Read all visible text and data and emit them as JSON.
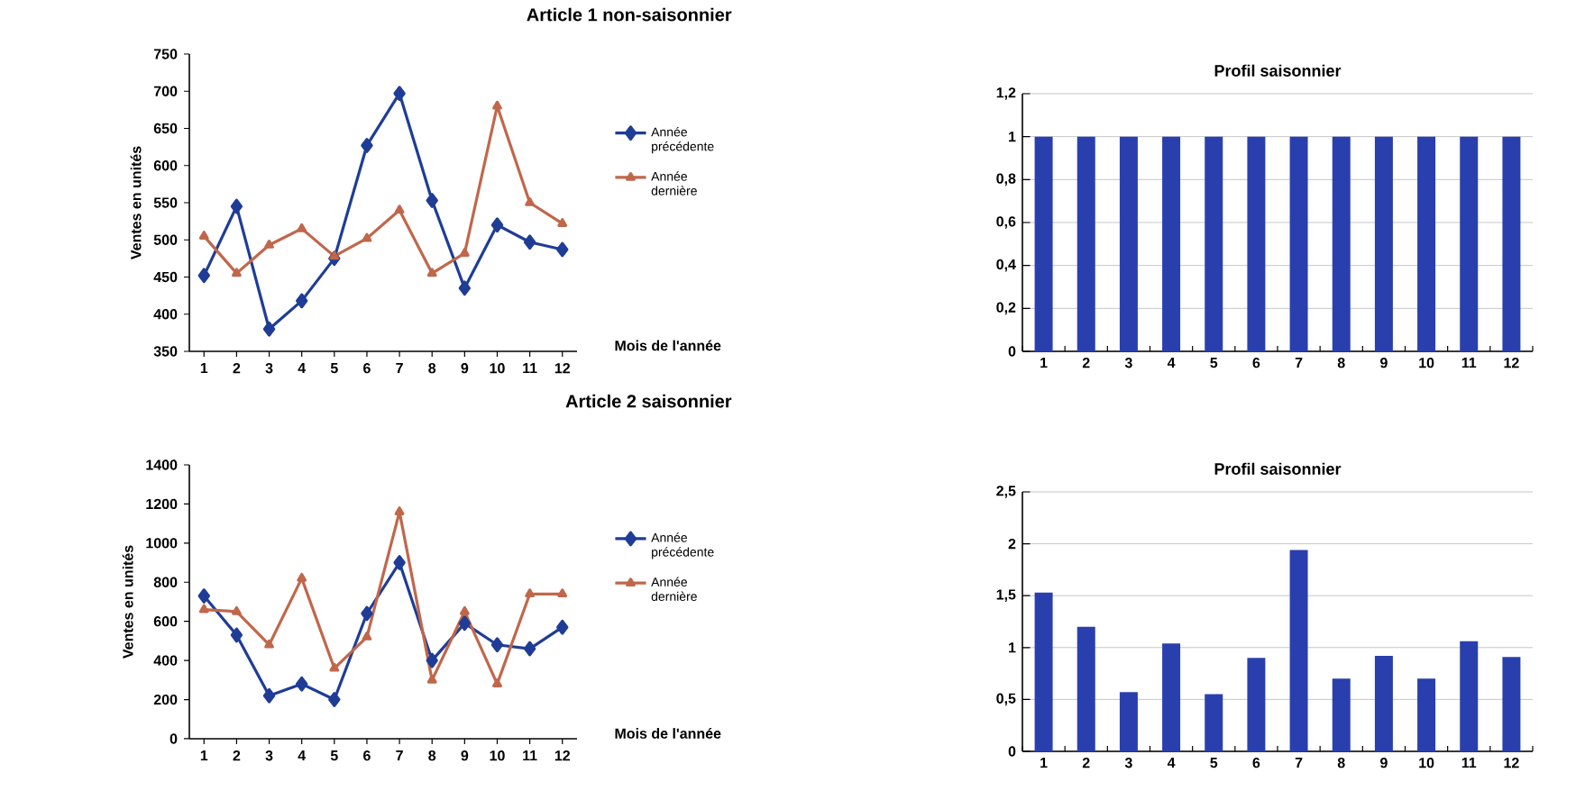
{
  "chart_data": [
    {
      "type": "line",
      "title": "Article 1 non-saisonnier",
      "xlabel": "Mois de l'année",
      "ylabel": "Ventes en unités",
      "categories": [
        "1",
        "2",
        "3",
        "4",
        "5",
        "6",
        "7",
        "8",
        "9",
        "10",
        "11",
        "12"
      ],
      "ylim": [
        350,
        750
      ],
      "yticks": [
        350,
        400,
        450,
        500,
        550,
        600,
        650,
        700,
        750
      ],
      "legend": "right",
      "series": [
        {
          "name": "Année précédente",
          "color": "#1f3d96",
          "marker": "diamond",
          "values": [
            452,
            545,
            380,
            418,
            475,
            627,
            697,
            553,
            435,
            520,
            497,
            487
          ]
        },
        {
          "name": "Année dernière",
          "color": "#c0674b",
          "marker": "triangle",
          "values": [
            505,
            455,
            493,
            515,
            478,
            502,
            540,
            455,
            482,
            680,
            550,
            522
          ]
        }
      ]
    },
    {
      "type": "bar",
      "title": "Profil saisonnier",
      "categories": [
        "1",
        "2",
        "3",
        "4",
        "5",
        "6",
        "7",
        "8",
        "9",
        "10",
        "11",
        "12"
      ],
      "ylim": [
        0,
        1.2
      ],
      "yticks": [
        0,
        {
          "value": 0.2,
          "label": "0,2"
        },
        {
          "value": 0.4,
          "label": "0,4"
        },
        {
          "value": 0.6,
          "label": "0,6"
        },
        {
          "value": 0.8,
          "label": "0,8"
        },
        1,
        {
          "value": 1.2,
          "label": "1,2"
        }
      ],
      "grid": "y",
      "color": "#2a3fae",
      "values": [
        1,
        1,
        1,
        1,
        1,
        1,
        1,
        1,
        1,
        1,
        1,
        1
      ]
    },
    {
      "type": "line",
      "title": "Article 2 saisonnier",
      "xlabel": "Mois de l'année",
      "ylabel": "Ventes en unités",
      "categories": [
        "1",
        "2",
        "3",
        "4",
        "5",
        "6",
        "7",
        "8",
        "9",
        "10",
        "11",
        "12"
      ],
      "ylim": [
        0,
        1400
      ],
      "yticks": [
        0,
        200,
        400,
        600,
        800,
        1000,
        1200,
        1400
      ],
      "legend": "right",
      "series": [
        {
          "name": "Année précédente",
          "color": "#1f3d96",
          "marker": "diamond",
          "values": [
            730,
            530,
            220,
            280,
            200,
            640,
            900,
            400,
            590,
            480,
            460,
            570
          ]
        },
        {
          "name": "Année dernière",
          "color": "#c0674b",
          "marker": "triangle",
          "values": [
            660,
            650,
            480,
            820,
            360,
            520,
            1160,
            300,
            650,
            280,
            740,
            740
          ]
        }
      ]
    },
    {
      "type": "bar",
      "title": "Profil saisonnier",
      "categories": [
        "1",
        "2",
        "3",
        "4",
        "5",
        "6",
        "7",
        "8",
        "9",
        "10",
        "11",
        "12"
      ],
      "ylim": [
        0,
        2.5
      ],
      "yticks": [
        0,
        {
          "value": 0.5,
          "label": "0,5"
        },
        1,
        {
          "value": 1.5,
          "label": "1,5"
        },
        2,
        {
          "value": 2.5,
          "label": "2,5"
        }
      ],
      "grid": "y",
      "color": "#2a3fae",
      "values": [
        1.53,
        1.2,
        0.57,
        1.04,
        0.55,
        0.9,
        1.94,
        0.7,
        0.92,
        0.7,
        1.06,
        0.91
      ]
    }
  ]
}
